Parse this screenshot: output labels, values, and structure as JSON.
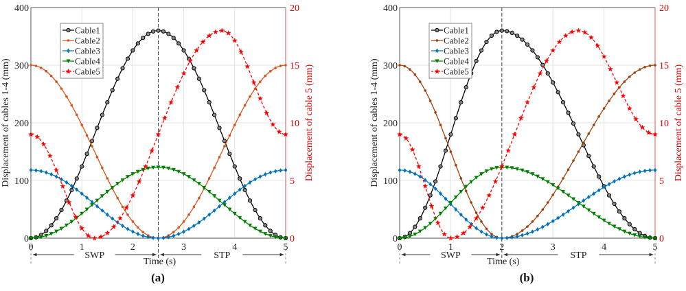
{
  "chart_data": [
    {
      "type": "line",
      "panel_label": "(a)",
      "xlabel": "Time (s)",
      "ylabel_left": "Displacement of cables 1-4 (mm)",
      "ylabel_right": "Displacement of cable 5 (mm)",
      "xlim": [
        0,
        5
      ],
      "ylim_left": [
        0,
        400
      ],
      "ylim_right": [
        0,
        20
      ],
      "xticks": [
        "0",
        "1",
        "2",
        "3",
        "4",
        "5"
      ],
      "yticks_left": [
        "0",
        "100",
        "200",
        "300",
        "400"
      ],
      "yticks_right": [
        "0",
        "5",
        "10",
        "15",
        "20"
      ],
      "grid": true,
      "legend_position": "top-left",
      "phase_split": 2.5,
      "phases": [
        {
          "label": "SWP",
          "from": 0,
          "to": 2.5
        },
        {
          "label": "STP",
          "from": 2.5,
          "to": 5
        }
      ],
      "series": [
        {
          "name": "Cable1",
          "color": "#000000",
          "marker": "circle",
          "axis": "left",
          "style": "solid",
          "start": 0,
          "peak": 360,
          "peak_t": 2.5,
          "end": 0
        },
        {
          "name": "Cable2",
          "color": "#d95319",
          "marker": "dot",
          "axis": "left",
          "style": "solid",
          "start": 300,
          "peak": 0,
          "peak_t": 2.5,
          "end": 300
        },
        {
          "name": "Cable3",
          "color": "#0072bd",
          "marker": "diamond",
          "axis": "left",
          "style": "solid",
          "start": 118,
          "peak": 0,
          "peak_t": 2.5,
          "end": 118
        },
        {
          "name": "Cable4",
          "color": "#008000",
          "marker": "triangle-down",
          "axis": "left",
          "style": "solid",
          "start": 0,
          "peak": 123,
          "peak_t": 2.5,
          "end": 0
        },
        {
          "name": "Cable5",
          "color": "#ff0000",
          "marker": "star",
          "axis": "right",
          "style": "dashed",
          "start": 9,
          "min": 0,
          "min_t": 1.25,
          "max": 18,
          "max_t": 3.75,
          "end": 9
        }
      ]
    },
    {
      "type": "line",
      "panel_label": "(b)",
      "xlabel": "Time (s)",
      "ylabel_left": "Displacement of cables 1-4 (mm)",
      "ylabel_right": "Displacement of cable 5 (mm)",
      "xlim": [
        0,
        5
      ],
      "ylim_left": [
        0,
        400
      ],
      "ylim_right": [
        0,
        20
      ],
      "xticks": [
        "0",
        "1",
        "2",
        "3",
        "4",
        "5"
      ],
      "yticks_left": [
        "0",
        "100",
        "200",
        "300",
        "400"
      ],
      "yticks_right": [
        "0",
        "5",
        "10",
        "15",
        "20"
      ],
      "grid": true,
      "legend_position": "top-left",
      "phase_split": 2,
      "phases": [
        {
          "label": "SWP",
          "from": 0,
          "to": 2
        },
        {
          "label": "STP",
          "from": 2,
          "to": 5
        }
      ],
      "series": [
        {
          "name": "Cable1",
          "color": "#000000",
          "marker": "circle",
          "axis": "left",
          "style": "solid",
          "start": 0,
          "peak": 360,
          "peak_t": 2,
          "end": 0
        },
        {
          "name": "Cable2",
          "color": "#a0400a",
          "marker": "dot",
          "axis": "left",
          "style": "solid",
          "start": 300,
          "peak": 0,
          "peak_t": 2,
          "end": 300
        },
        {
          "name": "Cable3",
          "color": "#0072bd",
          "marker": "diamond",
          "axis": "left",
          "style": "solid",
          "start": 118,
          "peak": 0,
          "peak_t": 2,
          "end": 118
        },
        {
          "name": "Cable4",
          "color": "#008000",
          "marker": "triangle-down",
          "axis": "left",
          "style": "solid",
          "start": 0,
          "peak": 123,
          "peak_t": 2,
          "end": 0
        },
        {
          "name": "Cable5",
          "color": "#ff0000",
          "marker": "star",
          "axis": "right",
          "style": "dashed",
          "start": 9,
          "min": 0,
          "min_t": 1,
          "max": 18,
          "max_t": 3.5,
          "end": 9
        }
      ]
    }
  ]
}
